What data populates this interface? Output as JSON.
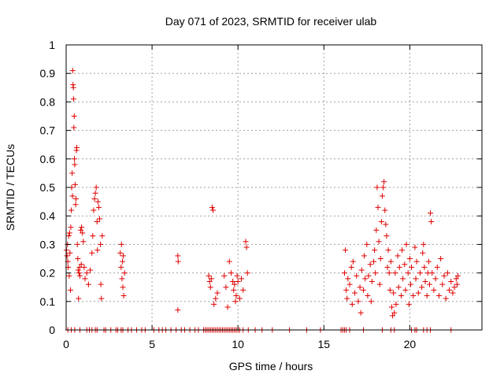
{
  "chart_data": {
    "type": "scatter",
    "title": "Day 071 of 2023, SRMTID for receiver ulab",
    "xlabel": "GPS time / hours",
    "ylabel": "SRMTID / TECUs",
    "xlim": [
      0,
      24.2
    ],
    "ylim": [
      0,
      1
    ],
    "xticks": [
      0,
      5,
      10,
      15,
      20
    ],
    "xtick_labels": [
      "0",
      "5",
      "10",
      "15",
      "20"
    ],
    "yticks": [
      0,
      0.1,
      0.2,
      0.3,
      0.4,
      0.5,
      0.6,
      0.7,
      0.8,
      0.9,
      1
    ],
    "ytick_labels": [
      "0",
      "0.1",
      "0.2",
      "0.3",
      "0.4",
      "0.5",
      "0.6",
      "0.7",
      "0.8",
      "0.9",
      "1"
    ],
    "grid": true,
    "marker": "+",
    "color": "#e00000",
    "series": [
      {
        "name": "SRMTID",
        "points": [
          [
            0.02,
            0.28
          ],
          [
            0.05,
            0.26
          ],
          [
            0.08,
            0.3
          ],
          [
            0.1,
            0.24
          ],
          [
            0.12,
            0.22
          ],
          [
            0.15,
            0.33
          ],
          [
            0.18,
            0.19
          ],
          [
            0.2,
            0.34
          ],
          [
            0.22,
            0.27
          ],
          [
            0.25,
            0.14
          ],
          [
            0.27,
            0.36
          ],
          [
            0.3,
            0.42
          ],
          [
            0.32,
            0.5
          ],
          [
            0.35,
            0.55
          ],
          [
            0.37,
            0.47
          ],
          [
            0.38,
            0.91
          ],
          [
            0.4,
            0.86
          ],
          [
            0.42,
            0.85
          ],
          [
            0.43,
            0.81
          ],
          [
            0.45,
            0.71
          ],
          [
            0.47,
            0.75
          ],
          [
            0.48,
            0.6
          ],
          [
            0.5,
            0.58
          ],
          [
            0.52,
            0.51
          ],
          [
            0.55,
            0.44
          ],
          [
            0.57,
            0.46
          ],
          [
            0.6,
            0.63
          ],
          [
            0.62,
            0.64
          ],
          [
            0.65,
            0.3
          ],
          [
            0.68,
            0.25
          ],
          [
            0.7,
            0.21
          ],
          [
            0.72,
            0.11
          ],
          [
            0.75,
            0.2
          ],
          [
            0.78,
            0.22
          ],
          [
            0.8,
            0.19
          ],
          [
            0.85,
            0.35
          ],
          [
            0.88,
            0.23
          ],
          [
            0.9,
            0.36
          ],
          [
            0.95,
            0.34
          ],
          [
            1.0,
            0.31
          ],
          [
            1.05,
            0.22
          ],
          [
            1.1,
            0.18
          ],
          [
            1.2,
            0.2
          ],
          [
            1.3,
            0.16
          ],
          [
            1.4,
            0.21
          ],
          [
            1.5,
            0.27
          ],
          [
            1.55,
            0.33
          ],
          [
            1.6,
            0.42
          ],
          [
            1.65,
            0.46
          ],
          [
            1.7,
            0.48
          ],
          [
            1.75,
            0.5
          ],
          [
            1.8,
            0.38
          ],
          [
            1.82,
            0.28
          ],
          [
            1.85,
            0.45
          ],
          [
            1.9,
            0.43
          ],
          [
            1.95,
            0.39
          ],
          [
            2.0,
            0.3
          ],
          [
            2.02,
            0.16
          ],
          [
            2.05,
            0.11
          ],
          [
            2.1,
            0.33
          ],
          [
            3.15,
            0.27
          ],
          [
            3.2,
            0.22
          ],
          [
            3.22,
            0.3
          ],
          [
            3.25,
            0.18
          ],
          [
            3.28,
            0.24
          ],
          [
            3.3,
            0.15
          ],
          [
            3.32,
            0.26
          ],
          [
            3.35,
            0.12
          ],
          [
            3.4,
            0.2
          ],
          [
            6.5,
            0.26
          ],
          [
            6.52,
            0.24
          ],
          [
            6.5,
            0.07
          ],
          [
            8.3,
            0.19
          ],
          [
            8.35,
            0.17
          ],
          [
            8.4,
            0.15
          ],
          [
            8.45,
            0.18
          ],
          [
            8.5,
            0.43
          ],
          [
            8.55,
            0.42
          ],
          [
            8.6,
            0.09
          ],
          [
            8.7,
            0.11
          ],
          [
            8.8,
            0.13
          ],
          [
            9.2,
            0.19
          ],
          [
            9.3,
            0.15
          ],
          [
            9.4,
            0.08
          ],
          [
            9.5,
            0.24
          ],
          [
            9.6,
            0.2
          ],
          [
            9.7,
            0.17
          ],
          [
            9.75,
            0.14
          ],
          [
            9.8,
            0.16
          ],
          [
            9.85,
            0.1
          ],
          [
            9.9,
            0.12
          ],
          [
            9.95,
            0.19
          ],
          [
            10.0,
            0.17
          ],
          [
            10.1,
            0.11
          ],
          [
            10.2,
            0.18
          ],
          [
            10.3,
            0.14
          ],
          [
            10.45,
            0.31
          ],
          [
            10.5,
            0.29
          ],
          [
            10.55,
            0.2
          ],
          [
            16.2,
            0.2
          ],
          [
            16.25,
            0.28
          ],
          [
            16.3,
            0.14
          ],
          [
            16.35,
            0.11
          ],
          [
            16.4,
            0.18
          ],
          [
            16.5,
            0.16
          ],
          [
            16.6,
            0.22
          ],
          [
            16.65,
            0.09
          ],
          [
            16.7,
            0.24
          ],
          [
            16.8,
            0.13
          ],
          [
            16.9,
            0.19
          ],
          [
            17.0,
            0.1
          ],
          [
            17.1,
            0.15
          ],
          [
            17.15,
            0.06
          ],
          [
            17.2,
            0.21
          ],
          [
            17.3,
            0.14
          ],
          [
            17.35,
            0.26
          ],
          [
            17.4,
            0.18
          ],
          [
            17.5,
            0.3
          ],
          [
            17.55,
            0.12
          ],
          [
            17.6,
            0.19
          ],
          [
            17.7,
            0.23
          ],
          [
            17.75,
            0.1
          ],
          [
            17.8,
            0.17
          ],
          [
            17.9,
            0.24
          ],
          [
            17.95,
            0.28
          ],
          [
            18.0,
            0.2
          ],
          [
            18.05,
            0.35
          ],
          [
            18.1,
            0.5
          ],
          [
            18.15,
            0.43
          ],
          [
            18.2,
            0.31
          ],
          [
            18.25,
            0.16
          ],
          [
            18.3,
            0.25
          ],
          [
            18.35,
            0.38
          ],
          [
            18.4,
            0.47
          ],
          [
            18.45,
            0.5
          ],
          [
            18.5,
            0.52
          ],
          [
            18.55,
            0.42
          ],
          [
            18.6,
            0.37
          ],
          [
            18.65,
            0.33
          ],
          [
            18.7,
            0.22
          ],
          [
            18.75,
            0.28
          ],
          [
            18.8,
            0.2
          ],
          [
            18.85,
            0.14
          ],
          [
            18.9,
            0.24
          ],
          [
            18.95,
            0.08
          ],
          [
            19.0,
            0.05
          ],
          [
            19.05,
            0.13
          ],
          [
            19.1,
            0.06
          ],
          [
            19.15,
            0.2
          ],
          [
            19.2,
            0.09
          ],
          [
            19.3,
            0.26
          ],
          [
            19.35,
            0.15
          ],
          [
            19.4,
            0.22
          ],
          [
            19.5,
            0.12
          ],
          [
            19.55,
            0.28
          ],
          [
            19.6,
            0.18
          ],
          [
            19.7,
            0.23
          ],
          [
            19.75,
            0.14
          ],
          [
            19.8,
            0.3
          ],
          [
            19.9,
            0.2
          ],
          [
            19.95,
            0.09
          ],
          [
            20.0,
            0.25
          ],
          [
            20.05,
            0.16
          ],
          [
            20.1,
            0.22
          ],
          [
            20.2,
            0.12
          ],
          [
            20.3,
            0.29
          ],
          [
            20.35,
            0.18
          ],
          [
            20.4,
            0.24
          ],
          [
            20.5,
            0.13
          ],
          [
            20.6,
            0.2
          ],
          [
            20.7,
            0.15
          ],
          [
            20.75,
            0.27
          ],
          [
            20.8,
            0.3
          ],
          [
            20.85,
            0.22
          ],
          [
            20.9,
            0.17
          ],
          [
            21.0,
            0.12
          ],
          [
            21.05,
            0.2
          ],
          [
            21.1,
            0.24
          ],
          [
            21.15,
            0.16
          ],
          [
            21.2,
            0.41
          ],
          [
            21.25,
            0.38
          ],
          [
            21.3,
            0.2
          ],
          [
            21.4,
            0.14
          ],
          [
            21.5,
            0.18
          ],
          [
            21.6,
            0.22
          ],
          [
            21.7,
            0.12
          ],
          [
            21.8,
            0.25
          ],
          [
            21.9,
            0.16
          ],
          [
            22.0,
            0.19
          ],
          [
            22.1,
            0.11
          ],
          [
            22.2,
            0.2
          ],
          [
            22.3,
            0.14
          ],
          [
            22.4,
            0.17
          ],
          [
            22.5,
            0.13
          ],
          [
            22.6,
            0.15
          ],
          [
            22.7,
            0.18
          ],
          [
            22.75,
            0.16
          ],
          [
            22.8,
            0.19
          ]
        ],
        "zero_points_x": [
          0.1,
          0.3,
          0.5,
          0.8,
          1.2,
          1.35,
          1.5,
          1.7,
          1.8,
          2.2,
          2.3,
          2.6,
          2.9,
          3.0,
          3.2,
          3.3,
          3.6,
          3.8,
          4.1,
          4.4,
          4.6,
          5.1,
          5.4,
          5.6,
          5.8,
          6.1,
          6.4,
          6.7,
          6.9,
          7.2,
          7.5,
          7.7,
          8.0,
          8.1,
          8.2,
          8.3,
          8.4,
          8.5,
          8.6,
          8.7,
          8.8,
          8.9,
          9.0,
          9.1,
          9.2,
          9.3,
          9.4,
          9.5,
          9.6,
          9.7,
          9.8,
          9.9,
          10.0,
          10.1,
          10.3,
          10.6,
          11.0,
          11.4,
          12.0,
          13.0,
          14.0,
          14.8,
          16.0,
          16.1,
          16.2,
          16.3,
          16.5,
          17.3,
          18.4,
          18.9,
          19.1,
          20.1,
          20.3,
          20.4,
          20.8,
          21.0,
          21.2,
          22.4
        ]
      }
    ]
  }
}
